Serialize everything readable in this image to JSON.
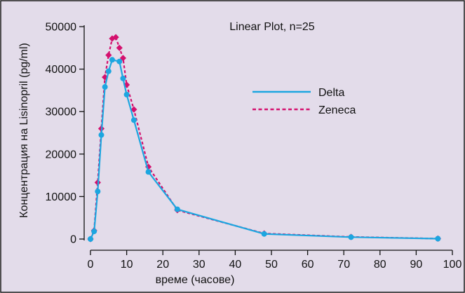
{
  "chart_data": {
    "type": "line",
    "title": "Linear Plot, n=25",
    "xlabel": "време (часове)",
    "ylabel": "Концентрация на Lisinopril (pg/ml)",
    "xlim": [
      0,
      100
    ],
    "ylim": [
      0,
      50000
    ],
    "x_ticks": [
      0,
      10,
      20,
      30,
      40,
      50,
      60,
      70,
      80,
      90,
      100
    ],
    "y_ticks": [
      0,
      10000,
      20000,
      30000,
      40000,
      50000
    ],
    "grid": false,
    "legend_position": "right",
    "series": [
      {
        "name": "Delta",
        "color": "#1ca6e0",
        "style": "solid",
        "marker": "circle",
        "x": [
          0,
          1,
          2,
          3,
          4,
          5,
          6,
          8,
          9,
          10,
          12,
          16,
          24,
          48,
          72,
          96
        ],
        "y": [
          0,
          1800,
          11200,
          24500,
          35800,
          39500,
          42200,
          41800,
          37800,
          34000,
          28000,
          15800,
          7000,
          1200,
          450,
          80
        ]
      },
      {
        "name": "Zeneca",
        "color": "#d4106e",
        "style": "dashed",
        "marker": "diamond",
        "x": [
          0,
          1,
          2,
          3,
          4,
          5,
          6,
          7,
          8,
          9,
          10,
          12,
          16,
          24,
          48,
          72,
          96
        ],
        "y": [
          0,
          2000,
          13300,
          26000,
          38100,
          43300,
          47200,
          47500,
          45000,
          42600,
          36300,
          30500,
          17000,
          6800,
          1300,
          500,
          100
        ]
      }
    ]
  },
  "colors": {
    "background": "#e3dcea",
    "border": "#1a1a1a",
    "delta": "#1ca6e0",
    "zeneca": "#d4106e"
  }
}
